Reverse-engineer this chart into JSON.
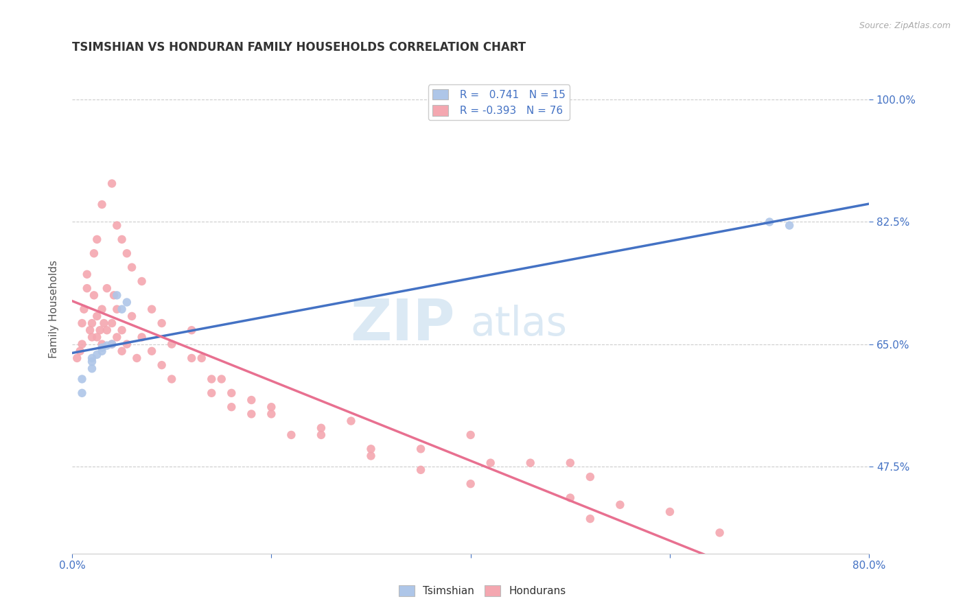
{
  "title": "TSIMSHIAN VS HONDURAN FAMILY HOUSEHOLDS CORRELATION CHART",
  "source": "Source: ZipAtlas.com",
  "ylabel": "Family Households",
  "ytick_labels": [
    "47.5%",
    "65.0%",
    "82.5%",
    "100.0%"
  ],
  "ytick_values": [
    0.475,
    0.65,
    0.825,
    1.0
  ],
  "xlim": [
    0.0,
    0.8
  ],
  "ylim": [
    0.35,
    1.05
  ],
  "tsimshian_color": "#aec6e8",
  "honduran_color": "#f4a7b0",
  "tsimshian_line_color": "#4472c4",
  "honduran_line_color": "#e87090",
  "honduran_dash_color": "#f0b8c0",
  "watermark_zip": "ZIP",
  "watermark_atlas": "atlas",
  "tsimshian_x": [
    0.01,
    0.01,
    0.02,
    0.02,
    0.02,
    0.025,
    0.03,
    0.03,
    0.035,
    0.04,
    0.045,
    0.05,
    0.055,
    0.7,
    0.72
  ],
  "tsimshian_y": [
    0.58,
    0.6,
    0.615,
    0.625,
    0.63,
    0.635,
    0.64,
    0.645,
    0.648,
    0.65,
    0.72,
    0.7,
    0.71,
    0.825,
    0.82
  ],
  "honduran_x": [
    0.005,
    0.008,
    0.01,
    0.01,
    0.012,
    0.015,
    0.015,
    0.018,
    0.02,
    0.02,
    0.022,
    0.025,
    0.025,
    0.028,
    0.03,
    0.03,
    0.032,
    0.035,
    0.035,
    0.04,
    0.04,
    0.042,
    0.045,
    0.045,
    0.05,
    0.05,
    0.055,
    0.06,
    0.065,
    0.07,
    0.08,
    0.09,
    0.1,
    0.12,
    0.13,
    0.14,
    0.15,
    0.16,
    0.18,
    0.2,
    0.22,
    0.25,
    0.28,
    0.3,
    0.35,
    0.4,
    0.42,
    0.46,
    0.5,
    0.52,
    0.55,
    0.6,
    0.65,
    0.022,
    0.025,
    0.03,
    0.04,
    0.045,
    0.05,
    0.055,
    0.06,
    0.07,
    0.08,
    0.09,
    0.1,
    0.12,
    0.14,
    0.16,
    0.18,
    0.2,
    0.25,
    0.3,
    0.35,
    0.4,
    0.5,
    0.52
  ],
  "honduran_y": [
    0.63,
    0.64,
    0.65,
    0.68,
    0.7,
    0.73,
    0.75,
    0.67,
    0.66,
    0.68,
    0.72,
    0.66,
    0.69,
    0.67,
    0.65,
    0.7,
    0.68,
    0.67,
    0.73,
    0.65,
    0.68,
    0.72,
    0.66,
    0.7,
    0.64,
    0.67,
    0.65,
    0.69,
    0.63,
    0.66,
    0.64,
    0.62,
    0.6,
    0.67,
    0.63,
    0.58,
    0.6,
    0.56,
    0.55,
    0.56,
    0.52,
    0.53,
    0.54,
    0.49,
    0.5,
    0.52,
    0.48,
    0.48,
    0.48,
    0.46,
    0.42,
    0.41,
    0.38,
    0.78,
    0.8,
    0.85,
    0.88,
    0.82,
    0.8,
    0.78,
    0.76,
    0.74,
    0.7,
    0.68,
    0.65,
    0.63,
    0.6,
    0.58,
    0.57,
    0.55,
    0.52,
    0.5,
    0.47,
    0.45,
    0.43,
    0.4
  ]
}
